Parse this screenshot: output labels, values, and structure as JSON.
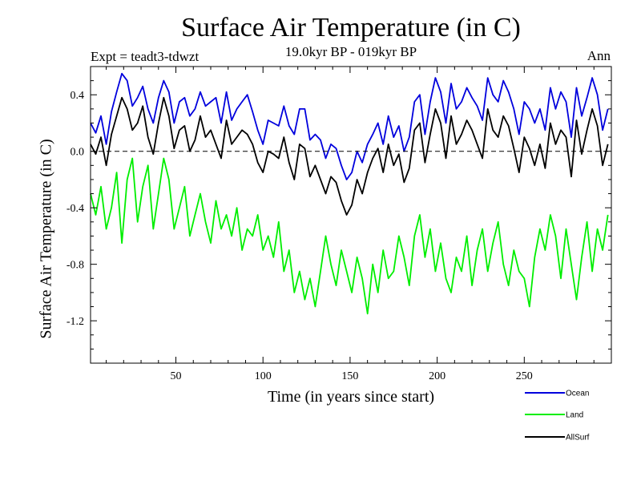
{
  "chart_data": {
    "type": "line",
    "title": "Surface Air Temperature (in C)",
    "subtitle": "19.0kyr BP - 019kyr BP",
    "experiment_label": "Expt = teadt3-tdwzt",
    "season_label": "Ann",
    "xlabel": "Time (in years since start)",
    "ylabel": "Surface Air Temperature (in C)",
    "xlim": [
      1,
      300
    ],
    "ylim": [
      -1.5,
      0.6
    ],
    "xticks": [
      50,
      100,
      150,
      200,
      250
    ],
    "xtick_labels": [
      "50",
      "100",
      "150",
      "200",
      "250"
    ],
    "yticks": [
      -1.2,
      -0.8,
      -0.4,
      0.0,
      0.4
    ],
    "ytick_labels": [
      "-1.2",
      "-0.8",
      "-0.4",
      "0.0",
      "0.4"
    ],
    "reference_line": 0.0,
    "grid": false,
    "legend_position": "bottom-right, below plot",
    "series": [
      {
        "name": "Ocean",
        "color": "#0000dd",
        "x": [
          1,
          4,
          7,
          10,
          13,
          16,
          19,
          22,
          25,
          28,
          31,
          34,
          37,
          40,
          43,
          46,
          49,
          52,
          55,
          58,
          61,
          64,
          67,
          70,
          73,
          76,
          79,
          82,
          85,
          88,
          91,
          94,
          97,
          100,
          103,
          106,
          109,
          112,
          115,
          118,
          121,
          124,
          127,
          130,
          133,
          136,
          139,
          142,
          145,
          148,
          151,
          154,
          157,
          160,
          163,
          166,
          169,
          172,
          175,
          178,
          181,
          184,
          187,
          190,
          193,
          196,
          199,
          202,
          205,
          208,
          211,
          214,
          217,
          220,
          223,
          226,
          229,
          232,
          235,
          238,
          241,
          244,
          247,
          250,
          253,
          256,
          259,
          262,
          265,
          268,
          271,
          274,
          277,
          280,
          283,
          286,
          289,
          292,
          295,
          298
        ],
        "values": [
          0.2,
          0.13,
          0.25,
          0.05,
          0.28,
          0.42,
          0.55,
          0.5,
          0.32,
          0.38,
          0.46,
          0.3,
          0.2,
          0.38,
          0.5,
          0.42,
          0.2,
          0.35,
          0.38,
          0.25,
          0.3,
          0.42,
          0.32,
          0.35,
          0.38,
          0.2,
          0.42,
          0.22,
          0.3,
          0.35,
          0.4,
          0.28,
          0.15,
          0.05,
          0.22,
          0.2,
          0.18,
          0.32,
          0.18,
          0.12,
          0.3,
          0.3,
          0.08,
          0.12,
          0.08,
          -0.05,
          0.05,
          0.02,
          -0.1,
          -0.2,
          -0.15,
          0.0,
          -0.08,
          0.05,
          0.12,
          0.2,
          0.05,
          0.25,
          0.1,
          0.18,
          0.0,
          0.1,
          0.35,
          0.4,
          0.12,
          0.35,
          0.52,
          0.42,
          0.2,
          0.48,
          0.3,
          0.35,
          0.45,
          0.38,
          0.32,
          0.22,
          0.52,
          0.4,
          0.35,
          0.5,
          0.42,
          0.3,
          0.12,
          0.35,
          0.3,
          0.2,
          0.3,
          0.15,
          0.45,
          0.3,
          0.42,
          0.35,
          0.1,
          0.45,
          0.25,
          0.38,
          0.52,
          0.4,
          0.15,
          0.3
        ]
      },
      {
        "name": "Land",
        "color": "#00ee00",
        "x": [
          1,
          4,
          7,
          10,
          13,
          16,
          19,
          22,
          25,
          28,
          31,
          34,
          37,
          40,
          43,
          46,
          49,
          52,
          55,
          58,
          61,
          64,
          67,
          70,
          73,
          76,
          79,
          82,
          85,
          88,
          91,
          94,
          97,
          100,
          103,
          106,
          109,
          112,
          115,
          118,
          121,
          124,
          127,
          130,
          133,
          136,
          139,
          142,
          145,
          148,
          151,
          154,
          157,
          160,
          163,
          166,
          169,
          172,
          175,
          178,
          181,
          184,
          187,
          190,
          193,
          196,
          199,
          202,
          205,
          208,
          211,
          214,
          217,
          220,
          223,
          226,
          229,
          232,
          235,
          238,
          241,
          244,
          247,
          250,
          253,
          256,
          259,
          262,
          265,
          268,
          271,
          274,
          277,
          280,
          283,
          286,
          289,
          292,
          295,
          298
        ],
        "values": [
          -0.3,
          -0.45,
          -0.25,
          -0.55,
          -0.4,
          -0.15,
          -0.65,
          -0.2,
          -0.05,
          -0.5,
          -0.25,
          -0.1,
          -0.55,
          -0.3,
          -0.05,
          -0.2,
          -0.55,
          -0.4,
          -0.25,
          -0.6,
          -0.45,
          -0.3,
          -0.5,
          -0.65,
          -0.35,
          -0.55,
          -0.45,
          -0.6,
          -0.4,
          -0.7,
          -0.55,
          -0.6,
          -0.45,
          -0.7,
          -0.6,
          -0.75,
          -0.5,
          -0.85,
          -0.7,
          -1.0,
          -0.85,
          -1.05,
          -0.9,
          -1.1,
          -0.85,
          -0.6,
          -0.8,
          -0.95,
          -0.7,
          -0.85,
          -1.0,
          -0.75,
          -0.9,
          -1.15,
          -0.8,
          -1.0,
          -0.7,
          -0.9,
          -0.85,
          -0.6,
          -0.75,
          -0.95,
          -0.6,
          -0.45,
          -0.75,
          -0.55,
          -0.85,
          -0.65,
          -0.9,
          -1.0,
          -0.75,
          -0.85,
          -0.6,
          -0.95,
          -0.7,
          -0.55,
          -0.85,
          -0.65,
          -0.5,
          -0.8,
          -0.95,
          -0.7,
          -0.85,
          -0.9,
          -1.1,
          -0.75,
          -0.55,
          -0.7,
          -0.45,
          -0.6,
          -0.9,
          -0.55,
          -0.8,
          -1.05,
          -0.75,
          -0.5,
          -0.85,
          -0.55,
          -0.7,
          -0.45
        ]
      },
      {
        "name": "AllSurf",
        "color": "#000000",
        "x": [
          1,
          4,
          7,
          10,
          13,
          16,
          19,
          22,
          25,
          28,
          31,
          34,
          37,
          40,
          43,
          46,
          49,
          52,
          55,
          58,
          61,
          64,
          67,
          70,
          73,
          76,
          79,
          82,
          85,
          88,
          91,
          94,
          97,
          100,
          103,
          106,
          109,
          112,
          115,
          118,
          121,
          124,
          127,
          130,
          133,
          136,
          139,
          142,
          145,
          148,
          151,
          154,
          157,
          160,
          163,
          166,
          169,
          172,
          175,
          178,
          181,
          184,
          187,
          190,
          193,
          196,
          199,
          202,
          205,
          208,
          211,
          214,
          217,
          220,
          223,
          226,
          229,
          232,
          235,
          238,
          241,
          244,
          247,
          250,
          253,
          256,
          259,
          262,
          265,
          268,
          271,
          274,
          277,
          280,
          283,
          286,
          289,
          292,
          295,
          298
        ],
        "values": [
          0.05,
          -0.02,
          0.1,
          -0.1,
          0.12,
          0.25,
          0.38,
          0.3,
          0.15,
          0.2,
          0.32,
          0.1,
          -0.02,
          0.2,
          0.38,
          0.25,
          0.02,
          0.15,
          0.18,
          0.0,
          0.08,
          0.25,
          0.1,
          0.15,
          0.05,
          -0.05,
          0.22,
          0.05,
          0.1,
          0.15,
          0.12,
          0.05,
          -0.08,
          -0.15,
          0.0,
          -0.02,
          -0.05,
          0.1,
          -0.08,
          -0.2,
          0.05,
          0.02,
          -0.18,
          -0.1,
          -0.2,
          -0.3,
          -0.18,
          -0.22,
          -0.35,
          -0.45,
          -0.38,
          -0.2,
          -0.3,
          -0.15,
          -0.05,
          0.02,
          -0.15,
          0.05,
          -0.1,
          -0.02,
          -0.22,
          -0.12,
          0.15,
          0.2,
          -0.08,
          0.12,
          0.3,
          0.2,
          -0.05,
          0.25,
          0.05,
          0.12,
          0.22,
          0.15,
          0.05,
          -0.05,
          0.3,
          0.15,
          0.1,
          0.25,
          0.18,
          0.02,
          -0.15,
          0.1,
          0.02,
          -0.1,
          0.05,
          -0.12,
          0.2,
          0.05,
          0.15,
          0.1,
          -0.18,
          0.22,
          -0.02,
          0.15,
          0.3,
          0.18,
          -0.1,
          0.05
        ]
      }
    ]
  }
}
